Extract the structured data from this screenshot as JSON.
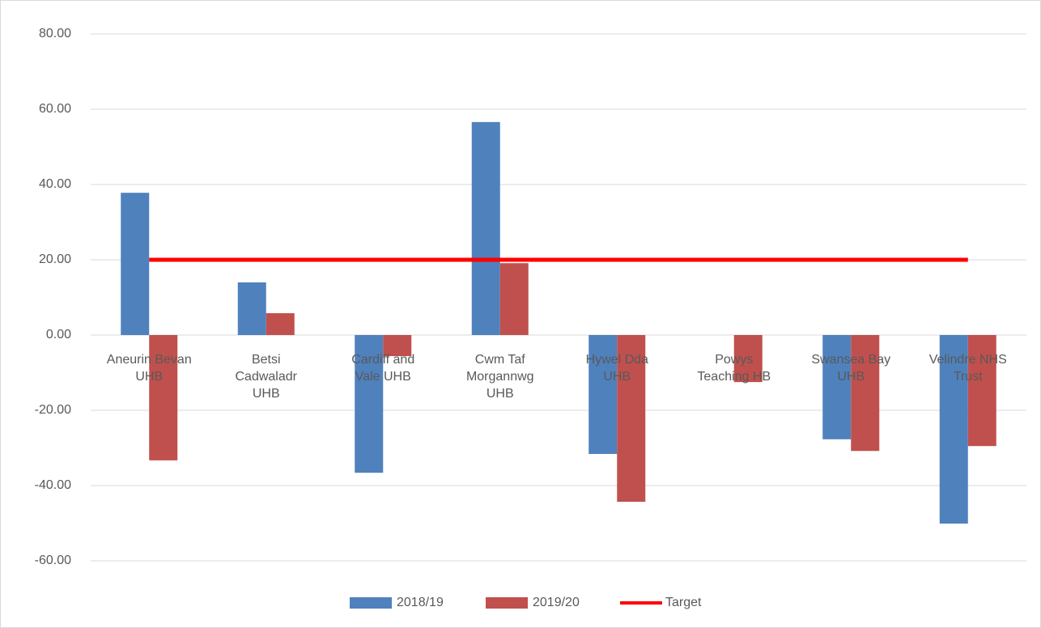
{
  "chart_data": {
    "type": "bar",
    "categories": [
      "Aneurin Bevan UHB",
      "Betsi Cadwaladr UHB",
      "Cardiff and Vale UHB",
      "Cwm Taf Morgannwg UHB",
      "Hywel Dda UHB",
      "Powys Teaching HB",
      "Swansea Bay UHB",
      "Velindre NHS Trust"
    ],
    "series": [
      {
        "name": "2018/19",
        "type": "bar",
        "color": "#4f81bd",
        "values": [
          37.8,
          14.0,
          -36.6,
          56.6,
          -31.6,
          0,
          -27.7,
          -50.1
        ]
      },
      {
        "name": "2019/20",
        "type": "bar",
        "color": "#c0504d",
        "values": [
          -33.3,
          5.8,
          -5.6,
          19.1,
          -44.3,
          -12.5,
          -30.8,
          -29.5
        ]
      },
      {
        "name": "Target",
        "type": "line",
        "color": "#ff0000",
        "values": [
          20,
          20,
          20,
          20,
          20,
          20,
          20,
          20
        ]
      }
    ],
    "ylim": [
      -60,
      80
    ],
    "yticks": [
      {
        "value": -60,
        "label": "-60.00"
      },
      {
        "value": -40,
        "label": "-40.00"
      },
      {
        "value": -20,
        "label": "-20.00"
      },
      {
        "value": 0,
        "label": "0.00"
      },
      {
        "value": 20,
        "label": "20.00"
      },
      {
        "value": 40,
        "label": "40.00"
      },
      {
        "value": 60,
        "label": "60.00"
      },
      {
        "value": 80,
        "label": "80.00"
      }
    ],
    "grid": true,
    "legend": "bottom"
  }
}
